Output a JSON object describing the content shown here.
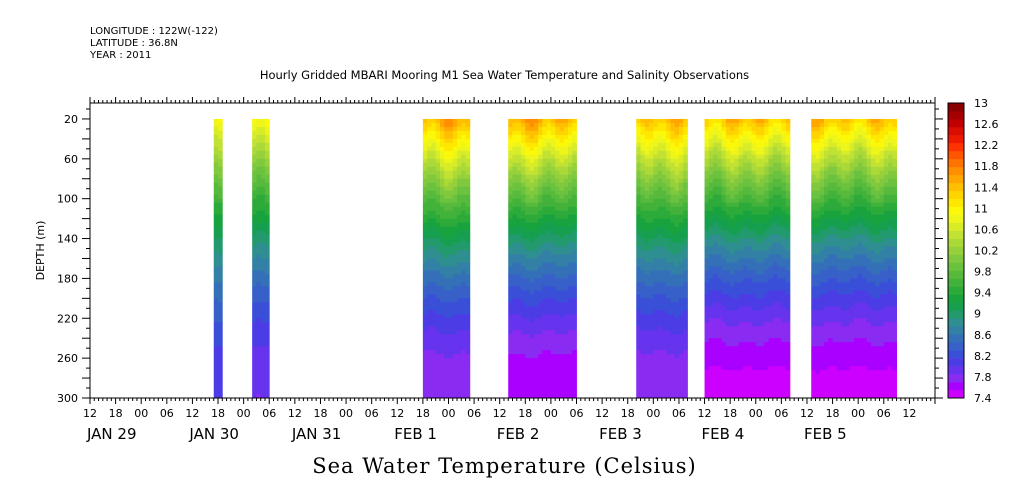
{
  "header": {
    "longitude": "LONGITUDE : 122W(-122)",
    "latitude": "LATITUDE : 36.8N",
    "year": "YEAR : 2011"
  },
  "title": "Hourly Gridded MBARI Mooring M1 Sea Water Temperature and Salinity Observations",
  "footer_label": "Sea Water Temperature (Celsius)",
  "chart_data": {
    "type": "heatmap",
    "variable": "Sea Water Temperature",
    "units": "Celsius",
    "ylabel": "DEPTH (m)",
    "y_reversed": true,
    "ylim": [
      300,
      4
    ],
    "y_ticks": [
      20,
      60,
      100,
      140,
      180,
      220,
      260,
      300
    ],
    "x_range_hours": [
      0,
      198
    ],
    "x_tick_step_hours": 6,
    "x_tick_labels": [
      "12",
      "18",
      "00",
      "06",
      "12",
      "18",
      "00",
      "06",
      "12",
      "18",
      "00",
      "06",
      "12",
      "18",
      "00",
      "06",
      "12",
      "18",
      "00",
      "06",
      "12",
      "18",
      "00",
      "06",
      "12",
      "18",
      "00",
      "06",
      "12",
      "18",
      "00",
      "06",
      "12"
    ],
    "date_labels": [
      {
        "label": "JAN 29",
        "hour": 0
      },
      {
        "label": "JAN 30",
        "hour": 24
      },
      {
        "label": "JAN 31",
        "hour": 48
      },
      {
        "label": "FEB  1",
        "hour": 72
      },
      {
        "label": "FEB  2",
        "hour": 96
      },
      {
        "label": "FEB  3",
        "hour": 120
      },
      {
        "label": "FEB  4",
        "hour": 144
      },
      {
        "label": "FEB  5",
        "hour": 168
      }
    ],
    "data_segments": [
      {
        "start": "JAN 29 17:00",
        "end": "JAN 29 18:00",
        "surface_temp": 11.8,
        "bottom_temp": 8.2
      },
      {
        "start": "JAN 30 02:00",
        "end": "JAN 30 05:00",
        "surface_temp": 12.2,
        "bottom_temp": 8.0
      },
      {
        "start": "JAN 31 18:00",
        "end": "FEB 01 04:00",
        "surface_temp": 12.8,
        "bottom_temp": 7.8
      },
      {
        "start": "FEB 01 14:00",
        "end": "FEB 02 05:00",
        "surface_temp": 12.8,
        "bottom_temp": 7.6
      },
      {
        "start": "FEB 02 20:00",
        "end": "FEB 03 07:00",
        "surface_temp": 12.6,
        "bottom_temp": 7.8
      },
      {
        "start": "FEB 03 12:00",
        "end": "FEB 04 07:00",
        "surface_temp": 12.6,
        "bottom_temp": 7.5
      },
      {
        "start": "FEB 04 13:00",
        "end": "FEB 05 08:00",
        "surface_temp": 12.6,
        "bottom_temp": 7.5
      }
    ],
    "colorbar": {
      "min": 7.4,
      "max": 13,
      "step": 0.2,
      "tick_labels": [
        "13",
        "12.6",
        "12.2",
        "11.8",
        "11.4",
        "11",
        "10.6",
        "10.2",
        "9.8",
        "9.4",
        "9",
        "8.6",
        "8.2",
        "7.8",
        "7.4"
      ],
      "colors": [
        "#cc00ff",
        "#a900ff",
        "#8a2bf2",
        "#6633ee",
        "#4c3ce6",
        "#3a4fd8",
        "#3760c8",
        "#3470b8",
        "#3380a6",
        "#2f8f90",
        "#229a6e",
        "#159f4f",
        "#19a33e",
        "#2dab3a",
        "#43b23b",
        "#58ba3d",
        "#6bc23f",
        "#80c93f",
        "#96d13b",
        "#abd938",
        "#c2e233",
        "#d8ec27",
        "#eef51a",
        "#fbf80a",
        "#ffe800",
        "#ffd300",
        "#ffbe00",
        "#ffa600",
        "#ff8e00",
        "#ff7300",
        "#ff5500",
        "#ff3300",
        "#ee1a00",
        "#d90d00",
        "#c00000",
        "#a40000",
        "#880000"
      ]
    }
  }
}
